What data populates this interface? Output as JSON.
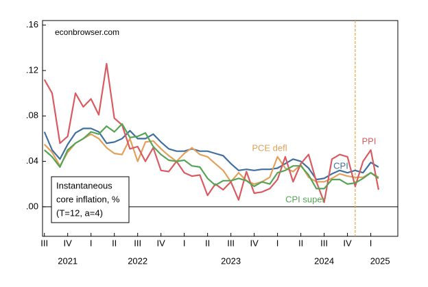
{
  "chart_data": {
    "type": "line",
    "source": "econbrowser.com",
    "annotation": [
      "Instantaneous",
      "core inflation, %",
      "(T=12, a=4)"
    ],
    "x": [
      2021.5,
      2021.583,
      2021.667,
      2021.75,
      2021.833,
      2021.917,
      2022,
      2022.083,
      2022.167,
      2022.25,
      2022.333,
      2022.417,
      2022.5,
      2022.583,
      2022.667,
      2022.75,
      2022.833,
      2022.917,
      2023,
      2023.083,
      2023.167,
      2023.25,
      2023.333,
      2023.417,
      2023.5,
      2023.583,
      2023.667,
      2023.75,
      2023.833,
      2023.917,
      2024,
      2024.083,
      2024.167,
      2024.25,
      2024.333,
      2024.417,
      2024.5,
      2024.583,
      2024.667,
      2024.75,
      2024.833,
      2024.917,
      2025,
      2025.083
    ],
    "series": [
      {
        "name": "CPI",
        "color": "#3f6f9f",
        "values": [
          0.066,
          0.05,
          0.042,
          0.055,
          0.065,
          0.069,
          0.069,
          0.066,
          0.056,
          0.057,
          0.06,
          0.067,
          0.06,
          0.06,
          0.064,
          0.057,
          0.051,
          0.049,
          0.049,
          0.051,
          0.049,
          0.049,
          0.047,
          0.045,
          0.038,
          0.032,
          0.033,
          0.032,
          0.033,
          0.033,
          0.034,
          0.038,
          0.042,
          0.04,
          0.034,
          0.024,
          0.025,
          0.029,
          0.032,
          0.03,
          0.032,
          0.03,
          0.039,
          0.035
        ]
      },
      {
        "name": "PCE defl",
        "color": "#e1a05c",
        "values": [
          0.055,
          0.048,
          0.036,
          0.048,
          0.056,
          0.06,
          0.064,
          0.06,
          0.052,
          0.047,
          0.046,
          0.06,
          0.04,
          0.057,
          0.058,
          0.051,
          0.045,
          0.04,
          0.047,
          0.052,
          0.046,
          0.044,
          0.038,
          0.032,
          0.022,
          0.03,
          0.023,
          0.02,
          0.022,
          0.026,
          0.044,
          0.034,
          0.031,
          0.037,
          0.026,
          0.022,
          0.022,
          0.025,
          0.029,
          0.027,
          0.026,
          0.026,
          0.03,
          0.026
        ]
      },
      {
        "name": "PPI",
        "color": "#d95a60",
        "values": [
          0.112,
          0.1,
          0.056,
          0.062,
          0.1,
          0.088,
          0.095,
          0.081,
          0.126,
          0.078,
          0.072,
          0.051,
          0.053,
          0.04,
          0.052,
          0.032,
          0.031,
          0.04,
          0.03,
          0.027,
          0.028,
          0.01,
          0.02,
          0.015,
          0.022,
          0.006,
          0.031,
          0.012,
          0.013,
          0.016,
          0.024,
          0.044,
          0.022,
          0.038,
          0.046,
          0.022,
          0.004,
          0.042,
          0.046,
          0.044,
          0.018,
          0.04,
          0.05,
          0.015
        ]
      },
      {
        "name": "CPI super",
        "color": "#55a455",
        "values": [
          0.05,
          0.044,
          0.035,
          0.05,
          0.056,
          0.06,
          0.066,
          0.064,
          0.071,
          0.066,
          0.073,
          0.061,
          0.062,
          0.065,
          0.053,
          0.046,
          0.041,
          0.04,
          0.041,
          0.036,
          0.035,
          0.025,
          0.019,
          0.023,
          0.023,
          0.025,
          0.023,
          0.018,
          0.022,
          0.02,
          0.03,
          0.032,
          0.036,
          0.036,
          0.028,
          0.016,
          0.016,
          0.024,
          0.024,
          0.02,
          0.021,
          0.025,
          0.03,
          0.025
        ]
      }
    ],
    "xlim": [
      2021.48,
      2025.29
    ],
    "ylim": [
      -0.026,
      0.164
    ],
    "yticks": [
      {
        "value": 0,
        "label": ".00"
      },
      {
        "value": 0.04,
        "label": ".04"
      },
      {
        "value": 0.08,
        "label": ".08"
      },
      {
        "value": 0.12,
        "label": ".12"
      },
      {
        "value": 0.16,
        "label": ".16"
      }
    ],
    "xticks": [
      {
        "value": 2021.5,
        "label": "III"
      },
      {
        "value": 2021.75,
        "label": "IV"
      },
      {
        "value": 2022,
        "label": "I"
      },
      {
        "value": 2022.25,
        "label": "II"
      },
      {
        "value": 2022.5,
        "label": "III"
      },
      {
        "value": 2022.75,
        "label": "IV"
      },
      {
        "value": 2023,
        "label": "I"
      },
      {
        "value": 2023.25,
        "label": "II"
      },
      {
        "value": 2023.5,
        "label": "III"
      },
      {
        "value": 2023.75,
        "label": "IV"
      },
      {
        "value": 2024,
        "label": "I"
      },
      {
        "value": 2024.25,
        "label": "II"
      },
      {
        "value": 2024.5,
        "label": "III"
      },
      {
        "value": 2024.75,
        "label": "IV"
      },
      {
        "value": 2025,
        "label": "I"
      }
    ],
    "year_labels": [
      {
        "value": 2021.75,
        "label": "2021"
      },
      {
        "value": 2022.5,
        "label": "2022"
      },
      {
        "value": 2023.5,
        "label": "2023"
      },
      {
        "value": 2024.5,
        "label": "2024"
      },
      {
        "value": 2025.1,
        "label": "2025"
      }
    ],
    "event_line": 2024.833,
    "event_color": "#f0a040",
    "zero_line": 0
  }
}
